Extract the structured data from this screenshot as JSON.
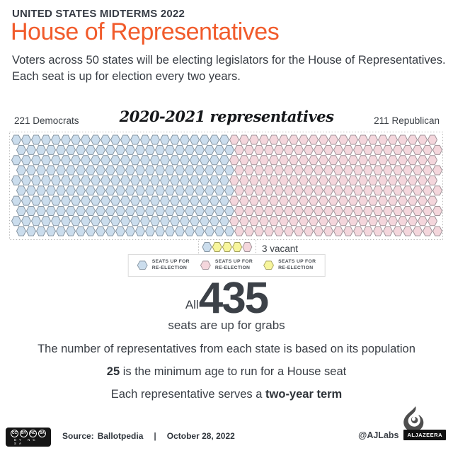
{
  "header": {
    "kicker": "UNITED STATES MIDTERMS 2022",
    "title": "House of Representatives",
    "subtitle_line1": "Voters across 50 states will be electing legislators for the House of Representatives.",
    "subtitle_line2": "Each seat is up for election every two years."
  },
  "colors": {
    "accent_orange": "#f15b2b",
    "democrat_fill": "#cbdded",
    "democrat_stroke": "#8796a3",
    "republican_fill": "#f4d6dc",
    "republican_stroke": "#a1949a",
    "vacant_fill": "#f7f59c",
    "vacant_stroke": "#a3a05e",
    "dotted_border": "#b8b8b8",
    "text_dark": "#3b4046"
  },
  "chart_data": {
    "type": "parliament-hexagon",
    "title": "2020-2021 representatives",
    "left_label": "221 Democrats",
    "right_label": "211 Republican",
    "total_seats": 435,
    "series": [
      {
        "name": "Democrats",
        "seats": 221,
        "color_key": "democrat"
      },
      {
        "name": "Republican",
        "seats": 211,
        "color_key": "republican"
      },
      {
        "name": "Vacant",
        "seats": 3,
        "color_key": "vacant"
      }
    ],
    "layout": {
      "rows": 10,
      "cols": 43,
      "democrats_per_row": 22,
      "republicans_per_row": 21,
      "bottom_row": [
        "democrat",
        "vacant",
        "vacant",
        "vacant",
        "republican"
      ]
    },
    "vacant_label": "3 vacant"
  },
  "legend": {
    "items": [
      {
        "label_line1": "SEATS UP FOR",
        "label_line2": "RE-ELECTION",
        "color_key": "democrat"
      },
      {
        "label_line1": "SEATS UP FOR",
        "label_line2": "RE-ELECTION",
        "color_key": "republican"
      },
      {
        "label_line1": "SEATS UP FOR",
        "label_line2": "RE-ELECTION",
        "color_key": "vacant"
      }
    ]
  },
  "stats": {
    "all_prefix": "All",
    "big_number": "435",
    "big_suffix": "seats are up for grabs",
    "fact1": "The number of representatives from each state is based on its population",
    "fact2_bold": "25",
    "fact2_rest": " is the minimum age to run for a House seat",
    "fact3_prefix": "Each representative serves a ",
    "fact3_bold": "two-year term"
  },
  "footer": {
    "cc_circles": [
      "CC",
      "BY",
      "NC",
      "SA"
    ],
    "cc_sublabel": "BY NC SA",
    "source_label": "Source:",
    "source_value": "Ballotpedia",
    "separator": "|",
    "date": "October 28, 2022",
    "credit": "@AJLabs",
    "brand": "ALJAZEERA"
  }
}
